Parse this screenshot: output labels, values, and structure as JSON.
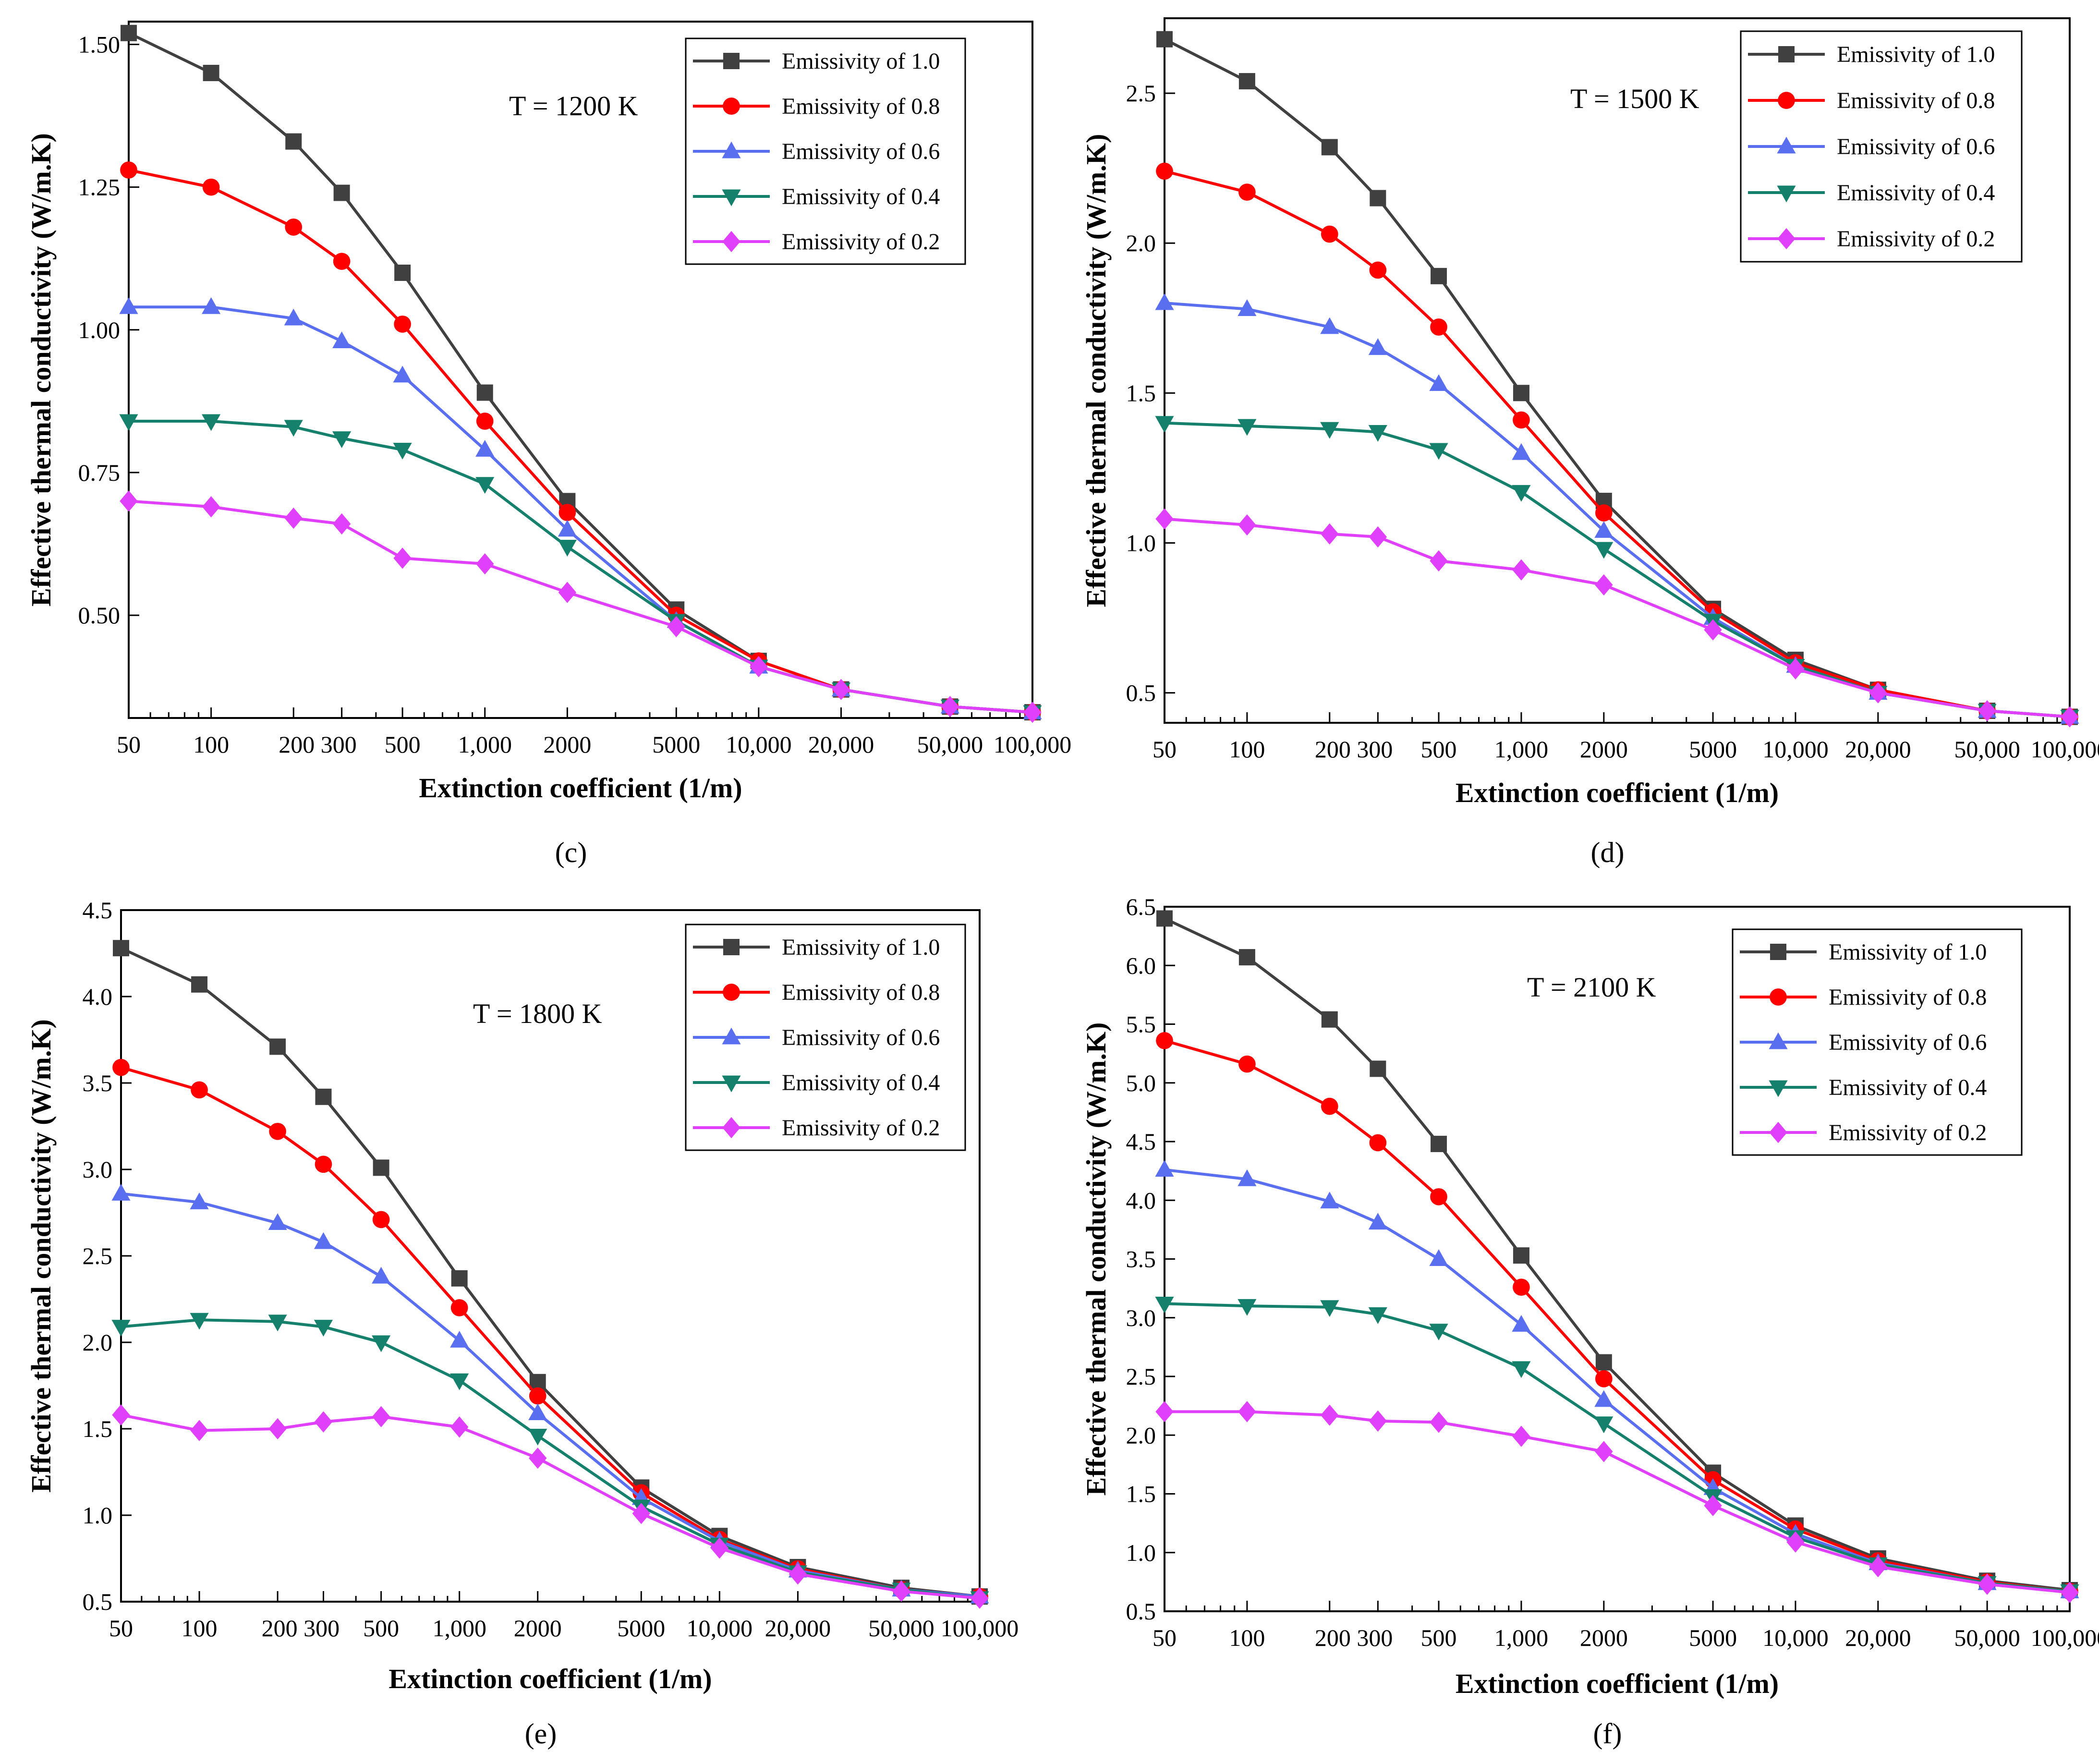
{
  "chart_data": [
    {
      "type": "line",
      "panel_label": "(c)",
      "annotation": "T = 1200 K",
      "xlabel": "Extinction coefficient (1/m)",
      "ylabel": "Effective thermal conductivity (W/m.K)",
      "x": [
        50,
        100,
        200,
        300,
        500,
        1000,
        2000,
        5000,
        10000,
        20000,
        50000,
        100000
      ],
      "x_tick_labels": [
        "50",
        "100",
        "200 300",
        "500",
        "1,000",
        "2000",
        "5000",
        "10,000",
        "20,000",
        "50,000",
        "100,000"
      ],
      "y_ticks": [
        "0.50",
        "0.75",
        "1.00",
        "1.25",
        "1.50"
      ],
      "ylim": [
        0.32,
        1.54
      ],
      "legend_position": "top-right",
      "series": [
        {
          "name": "Emissivity of 1.0",
          "values": [
            1.52,
            1.45,
            1.33,
            1.24,
            1.1,
            0.89,
            0.7,
            0.51,
            0.42,
            0.37,
            0.34,
            0.33
          ]
        },
        {
          "name": "Emissivity of 0.8",
          "values": [
            1.28,
            1.25,
            1.18,
            1.12,
            1.01,
            0.84,
            0.68,
            0.5,
            0.42,
            0.37,
            0.34,
            0.33
          ]
        },
        {
          "name": "Emissivity  of 0.6",
          "values": [
            1.04,
            1.04,
            1.02,
            0.98,
            0.92,
            0.79,
            0.65,
            0.49,
            0.41,
            0.37,
            0.34,
            0.33
          ]
        },
        {
          "name": "Emissivity of 0.4",
          "values": [
            0.84,
            0.84,
            0.83,
            0.81,
            0.79,
            0.73,
            0.62,
            0.49,
            0.41,
            0.37,
            0.34,
            0.33
          ]
        },
        {
          "name": "Emissivity of 0.2",
          "values": [
            0.7,
            0.69,
            0.67,
            0.66,
            0.6,
            0.59,
            0.54,
            0.48,
            0.41,
            0.37,
            0.34,
            0.33
          ]
        }
      ]
    },
    {
      "type": "line",
      "panel_label": "(d)",
      "annotation": "T = 1500 K",
      "xlabel": "Extinction coefficient (1/m)",
      "ylabel": "Effective thermal conductivity (W/m.K)",
      "x": [
        50,
        100,
        200,
        300,
        500,
        1000,
        2000,
        5000,
        10000,
        20000,
        50000,
        100000
      ],
      "x_tick_labels": [
        "50",
        "100",
        "200 300",
        "500",
        "1,000",
        "2000",
        "5000",
        "10,000",
        "20,000",
        "50,000",
        "100,000"
      ],
      "y_ticks": [
        "0.5",
        "1.0",
        "1.5",
        "2.0",
        "2.5"
      ],
      "ylim": [
        0.4,
        2.75
      ],
      "legend_position": "top-right",
      "series": [
        {
          "name": "Emissivity of 1.0",
          "values": [
            2.68,
            2.54,
            2.32,
            2.15,
            1.89,
            1.5,
            1.14,
            0.78,
            0.61,
            0.51,
            0.44,
            0.42
          ]
        },
        {
          "name": "Emissivity of 0.8",
          "values": [
            2.24,
            2.17,
            2.03,
            1.91,
            1.72,
            1.41,
            1.1,
            0.77,
            0.6,
            0.51,
            0.44,
            0.42
          ]
        },
        {
          "name": "Emissivity of 0.6",
          "values": [
            1.8,
            1.78,
            1.72,
            1.65,
            1.53,
            1.3,
            1.04,
            0.75,
            0.59,
            0.5,
            0.44,
            0.42
          ]
        },
        {
          "name": "Emissivity of 0.4",
          "values": [
            1.4,
            1.39,
            1.38,
            1.37,
            1.31,
            1.17,
            0.98,
            0.74,
            0.59,
            0.5,
            0.44,
            0.42
          ]
        },
        {
          "name": "Emissivity of 0.2",
          "values": [
            1.08,
            1.06,
            1.03,
            1.02,
            0.94,
            0.91,
            0.86,
            0.71,
            0.58,
            0.5,
            0.44,
            0.42
          ]
        }
      ]
    },
    {
      "type": "line",
      "panel_label": "(e)",
      "annotation": "T = 1800 K",
      "xlabel": "Extinction coefficient (1/m)",
      "ylabel": "Effective thermal conductivity (W/m.K)",
      "x": [
        50,
        100,
        200,
        300,
        500,
        1000,
        2000,
        5000,
        10000,
        20000,
        50000,
        100000
      ],
      "x_tick_labels": [
        "50",
        "100",
        "200 300",
        "500",
        "1,000",
        "2000",
        "5000",
        "10,000",
        "20,000",
        "50,000",
        "100,000"
      ],
      "y_ticks": [
        "0.5",
        "1.0",
        "1.5",
        "2.0",
        "2.5",
        "3.0",
        "3.5",
        "4.0",
        "4.5"
      ],
      "ylim": [
        0.5,
        4.5
      ],
      "legend_position": "top-right",
      "series": [
        {
          "name": "Emissivity of 1.0",
          "values": [
            4.28,
            4.07,
            3.71,
            3.42,
            3.01,
            2.37,
            1.77,
            1.16,
            0.88,
            0.7,
            0.58,
            0.53
          ]
        },
        {
          "name": "Emissivity of 0.8",
          "values": [
            3.59,
            3.46,
            3.22,
            3.03,
            2.71,
            2.2,
            1.69,
            1.13,
            0.86,
            0.69,
            0.57,
            0.53
          ]
        },
        {
          "name": "Emissivity of 0.6",
          "values": [
            2.86,
            2.81,
            2.69,
            2.58,
            2.38,
            2.01,
            1.59,
            1.1,
            0.85,
            0.68,
            0.57,
            0.53
          ]
        },
        {
          "name": "Emissivity of 0.4",
          "values": [
            2.09,
            2.13,
            2.12,
            2.09,
            2.0,
            1.78,
            1.46,
            1.05,
            0.83,
            0.67,
            0.57,
            0.52
          ]
        },
        {
          "name": "Emissivity of 0.2",
          "values": [
            1.58,
            1.49,
            1.5,
            1.54,
            1.57,
            1.51,
            1.33,
            1.01,
            0.81,
            0.66,
            0.56,
            0.52
          ]
        }
      ]
    },
    {
      "type": "line",
      "panel_label": "(f)",
      "annotation": "T = 2100 K",
      "xlabel": "Extinction coefficient (1/m)",
      "ylabel": "Effective thermal conductivity (W/m.K)",
      "x": [
        50,
        100,
        200,
        300,
        500,
        1000,
        2000,
        5000,
        10000,
        20000,
        50000,
        100000
      ],
      "x_tick_labels": [
        "50",
        "100",
        "200 300",
        "500",
        "1,000",
        "2000",
        "5000",
        "10,000",
        "20,000",
        "50,000",
        "100,000"
      ],
      "y_ticks": [
        "0.5",
        "1.0",
        "1.5",
        "2.0",
        "2.5",
        "3.0",
        "3.5",
        "4.0",
        "4.5",
        "5.0",
        "5.5",
        "6.0",
        "6.5"
      ],
      "ylim": [
        0.5,
        6.5
      ],
      "legend_position": "top-right",
      "series": [
        {
          "name": "Emissivity of 1.0",
          "values": [
            6.4,
            6.07,
            5.54,
            5.12,
            4.48,
            3.53,
            2.62,
            1.68,
            1.23,
            0.95,
            0.76,
            0.68
          ]
        },
        {
          "name": "Emissivity of 0.8",
          "values": [
            5.36,
            5.16,
            4.8,
            4.49,
            4.03,
            3.26,
            2.48,
            1.62,
            1.2,
            0.93,
            0.75,
            0.67
          ]
        },
        {
          "name": "Emissivity of 0.6",
          "values": [
            4.26,
            4.18,
            3.99,
            3.81,
            3.5,
            2.94,
            2.3,
            1.55,
            1.16,
            0.91,
            0.74,
            0.67
          ]
        },
        {
          "name": "Emissivity of 0.4",
          "values": [
            3.12,
            3.1,
            3.09,
            3.03,
            2.89,
            2.57,
            2.1,
            1.48,
            1.13,
            0.9,
            0.74,
            0.67
          ]
        },
        {
          "name": "Emissivity of 0.2",
          "values": [
            2.2,
            2.2,
            2.17,
            2.12,
            2.11,
            1.99,
            1.86,
            1.4,
            1.09,
            0.88,
            0.73,
            0.66
          ]
        }
      ]
    }
  ],
  "style": {
    "series_colors": [
      "#404040",
      "#ff0000",
      "#5a6ef0",
      "#15806b",
      "#e040fb"
    ],
    "series_markers": [
      "square",
      "circle",
      "triangle-up",
      "triangle-down",
      "diamond"
    ]
  }
}
